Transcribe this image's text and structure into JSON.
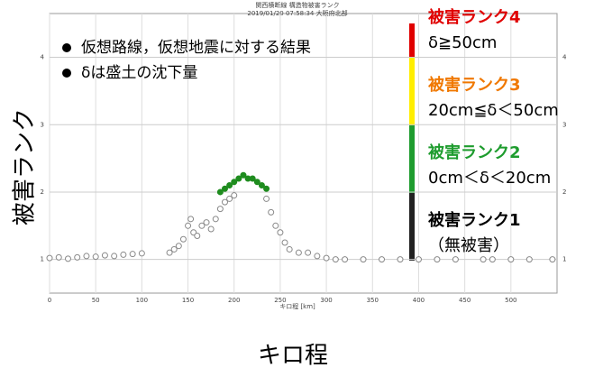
{
  "chart_data": {
    "type": "scatter",
    "title": "関西横断線 構造物被害ランク",
    "subtitle": "2019/01/20 07:58:34 大阪府北部",
    "x_label": "キロ程 [km]",
    "x_label_large": "キロ程",
    "y_label": "被害ランク",
    "xlim": [
      0,
      550
    ],
    "ylim": [
      0.5,
      4.65
    ],
    "xticks": [
      0,
      50,
      100,
      150,
      200,
      250,
      300,
      350,
      400,
      450,
      500
    ],
    "yticks": [
      1,
      2,
      3,
      4
    ],
    "grid": true,
    "series": [
      {
        "name": "gray",
        "color": "#888888",
        "x": [
          0,
          10,
          20,
          30,
          40,
          50,
          60,
          70,
          80,
          90,
          100,
          130,
          135,
          140,
          145,
          150,
          153,
          156,
          160,
          165,
          170,
          175,
          180,
          185,
          190,
          195,
          200,
          235,
          240,
          245,
          250,
          255,
          260,
          270,
          280,
          290,
          300,
          310,
          320,
          340,
          360,
          380,
          400,
          420,
          440,
          470,
          480,
          500,
          520,
          545
        ],
        "values": [
          1.02,
          1.03,
          1.01,
          1.03,
          1.05,
          1.04,
          1.06,
          1.05,
          1.07,
          1.08,
          1.09,
          1.1,
          1.15,
          1.2,
          1.3,
          1.5,
          1.6,
          1.4,
          1.35,
          1.5,
          1.55,
          1.45,
          1.6,
          1.75,
          1.85,
          1.9,
          1.95,
          1.9,
          1.7,
          1.5,
          1.4,
          1.25,
          1.15,
          1.1,
          1.1,
          1.05,
          1.02,
          1.0,
          1.0,
          1.0,
          1.0,
          1.0,
          1.0,
          1.0,
          1.0,
          1.0,
          1.0,
          1.0,
          1.0,
          1.0
        ]
      },
      {
        "name": "green",
        "color": "#1e8c1e",
        "x": [
          185,
          190,
          195,
          200,
          205,
          210,
          215,
          220,
          225,
          230,
          235
        ],
        "values": [
          2.0,
          2.05,
          2.1,
          2.15,
          2.2,
          2.25,
          2.2,
          2.2,
          2.15,
          2.1,
          2.05
        ]
      }
    ],
    "notes": [
      "仮想路線，仮想地震に対する結果",
      "δは盛土の沈下量"
    ],
    "rank_labels": [
      {
        "title": "被害ランク4",
        "text": "δ≧50cm",
        "color": "#e00000"
      },
      {
        "title": "被害ランク3",
        "text": "20cm≦δ＜50cm",
        "color": "#f07800"
      },
      {
        "title": "被害ランク2",
        "text": "0cm＜δ＜20cm",
        "color": "#1e9c2e"
      },
      {
        "title": "被害ランク1",
        "text": "（無被害）",
        "color": "#000000"
      }
    ]
  }
}
